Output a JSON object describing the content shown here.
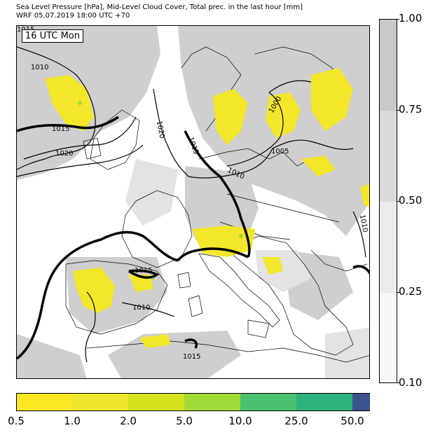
{
  "header": {
    "title_line1": "Sea Level Pressure [hPa], Mid-Level Cloud Cover, Total prec. in the last hour [mm]",
    "title_line2": "WRF 05.07.2019 18:00 UTC +70"
  },
  "map": {
    "time_label": "16 UTC Mon",
    "isobar_labels": [
      "1015",
      "1010",
      "1015",
      "1020",
      "1020",
      "1015",
      "1010",
      "1005",
      "1000",
      "1010",
      "1015",
      "1010",
      "1015"
    ]
  },
  "cloud_colorbar": {
    "ticks": [
      "1.00",
      "0.75",
      "0.50",
      "0.25",
      "0.10"
    ],
    "colors": [
      "#c9c9c9",
      "#dadada",
      "#ebebeb",
      "#f7f7f7"
    ]
  },
  "precip_colorbar": {
    "ticks": [
      "0.5",
      "1.0",
      "2.0",
      "5.0",
      "10.0",
      "25.0",
      "50.0"
    ],
    "colors": [
      "#fde725",
      "#ede52b",
      "#d6e21c",
      "#a0da39",
      "#4ac16d",
      "#2db27d",
      "#3b528b",
      "#440154"
    ]
  }
}
